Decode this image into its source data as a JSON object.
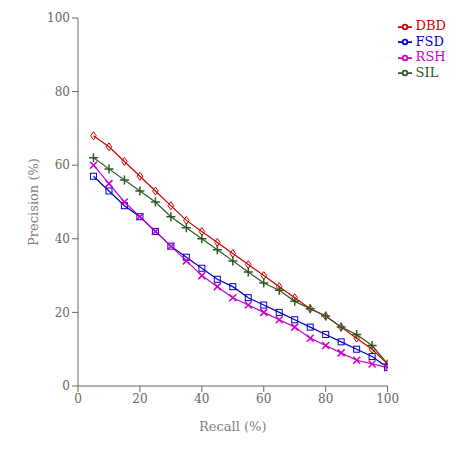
{
  "chart_data": {
    "type": "line",
    "title": "",
    "xlabel": "Recall (%)",
    "ylabel": "Precision (%)",
    "x": [
      5,
      10,
      15,
      20,
      25,
      30,
      35,
      40,
      45,
      50,
      55,
      60,
      65,
      70,
      75,
      80,
      85,
      90,
      95,
      100
    ],
    "series": [
      {
        "name": "DBD",
        "color": "#cc0000",
        "marker": "diamond",
        "line_style": "solid",
        "values": [
          68,
          65,
          61,
          57,
          53,
          49,
          45,
          42,
          39,
          36,
          33,
          30,
          27,
          24,
          21,
          19,
          16,
          13,
          10,
          6
        ]
      },
      {
        "name": "SIL",
        "color": "#2d5a27",
        "marker": "plus",
        "line_style": "solid",
        "values": [
          62,
          59,
          56,
          53,
          50,
          46,
          43,
          40,
          37,
          34,
          31,
          28,
          26,
          23,
          21,
          19,
          16,
          14,
          11,
          6
        ]
      },
      {
        "name": "FSD",
        "color": "#0000cc",
        "marker": "square",
        "line_style": "solid",
        "values": [
          57,
          53,
          49,
          46,
          42,
          38,
          35,
          32,
          29,
          27,
          24,
          22,
          20,
          18,
          16,
          14,
          12,
          10,
          8,
          5
        ]
      },
      {
        "name": "RSH",
        "color": "#cc00cc",
        "marker": "cross",
        "line_style": "solid",
        "values": [
          60,
          55,
          50,
          46,
          42,
          38,
          34,
          30,
          27,
          24,
          22,
          20,
          18,
          16,
          13,
          11,
          9,
          7,
          6,
          5
        ]
      }
    ],
    "xlim": [
      0,
      100
    ],
    "ylim": [
      0,
      100
    ],
    "xticks": [
      0,
      20,
      40,
      60,
      80,
      100
    ],
    "yticks": [
      0,
      20,
      40,
      60,
      80,
      100
    ],
    "grid": false,
    "legend": "upper right"
  }
}
